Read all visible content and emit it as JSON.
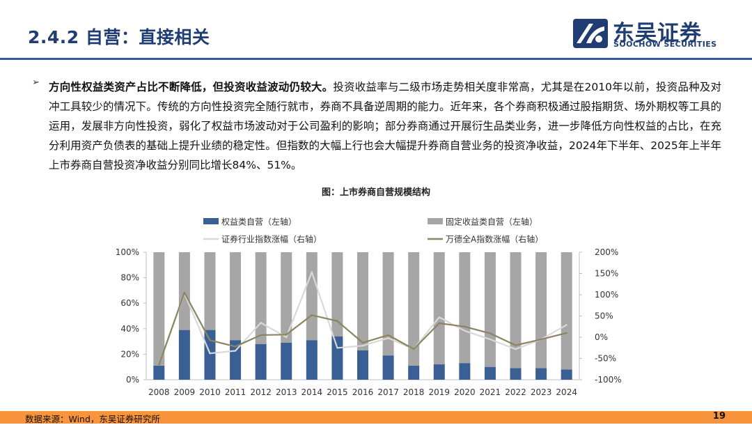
{
  "header": {
    "title": "2.4.2 自营：直接相关",
    "logo_cn": "东吴证券",
    "logo_en": "SOOCHOW SECURITIES"
  },
  "body": {
    "bullet_bold": "方向性权益类资产占比不断降低，但投资收益波动仍较大。",
    "bullet_rest": "投资收益率与二级市场走势相关度非常高，尤其是在2010年以前，投资品种及对冲工具较少的情况下。传统的方向性投资完全随行就市，券商不具备逆周期的能力。近年来，各个券商积极通过股指期货、场外期权等工具的运用，发展非方向性投资，弱化了权益市场波动对于公司盈利的影响；部分券商通过开展衍生品类业务，进一步降低方向性权益的占比，在充分利用资产负债表的基础上提升业绩的稳定性。但指数的大幅上行也会大幅提升券商自营业务的投资净收益，2024年下半年、2025年上半年上市券商自营投资净收益分别同比增长84%、51%。"
  },
  "chart_data": {
    "type": "bar",
    "title": "图：上市券商自营规模结构",
    "categories": [
      "2008",
      "2009",
      "2010",
      "2011",
      "2012",
      "2013",
      "2014",
      "2015",
      "2016",
      "2017",
      "2018",
      "2019",
      "2020",
      "2021",
      "2022",
      "2023",
      "2024"
    ],
    "left_axis": {
      "ylim": [
        0,
        100
      ],
      "ticks": [
        "0%",
        "20%",
        "40%",
        "60%",
        "80%",
        "100%"
      ],
      "tick_values": [
        0,
        20,
        40,
        60,
        80,
        100
      ]
    },
    "right_axis": {
      "ylim": [
        -100,
        200
      ],
      "ticks": [
        "-100%",
        "-50%",
        "0%",
        "50%",
        "100%",
        "150%",
        "200%"
      ],
      "tick_values": [
        -100,
        -50,
        0,
        50,
        100,
        150,
        200
      ]
    },
    "series": [
      {
        "name": "权益类自营（左轴）",
        "kind": "stacked-bar",
        "axis": "left",
        "color": "#3a5f95",
        "values": [
          11,
          39,
          39,
          31,
          28,
          29,
          31,
          34,
          23,
          19,
          11,
          12,
          13,
          10,
          9,
          9,
          8
        ]
      },
      {
        "name": "固定收益类自营（左轴）",
        "kind": "stacked-bar",
        "axis": "left",
        "color": "#a6a6a6",
        "values": [
          89,
          61,
          61,
          69,
          72,
          71,
          69,
          66,
          77,
          81,
          89,
          88,
          87,
          90,
          91,
          91,
          92
        ]
      },
      {
        "name": "证券行业指数涨幅（右轴）",
        "kind": "line",
        "axis": "right",
        "color": "#d9d9d9",
        "values": [
          -65,
          103,
          -38,
          -32,
          34,
          0,
          153,
          -25,
          -20,
          -2,
          -28,
          47,
          15,
          -5,
          -28,
          -5,
          29
        ]
      },
      {
        "name": "万德全A指数涨幅（右轴）",
        "kind": "line",
        "axis": "right",
        "color": "#8c8460",
        "values": [
          -65,
          105,
          -7,
          -22,
          5,
          6,
          52,
          38,
          -13,
          5,
          -28,
          33,
          25,
          9,
          -19,
          -5,
          10
        ]
      }
    ]
  },
  "footer": {
    "source": "数据来源：Wind，东吴证券研究所",
    "page": "19"
  }
}
